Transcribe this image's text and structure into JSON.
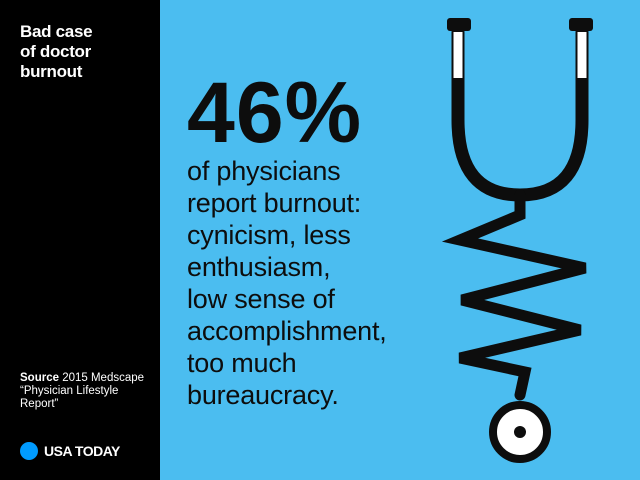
{
  "sidebar": {
    "title_lines": [
      "Bad case",
      "of doctor",
      "burnout"
    ],
    "source_label": "Source",
    "source_lines": [
      " 2015 Medscape",
      "“Physician Lifestyle",
      "Report”"
    ],
    "brand": "USA TODAY"
  },
  "main": {
    "stat": "46%",
    "description_lines": [
      "of physicians",
      "report burnout:",
      "cynicism, less",
      "enthusiasm,",
      "low sense of",
      "accomplishment,",
      "too much",
      "bureaucracy."
    ]
  },
  "colors": {
    "background": "#4bbdf0",
    "sidebar": "#000000",
    "brand_dot": "#009bff",
    "text": "#0d0d0d"
  },
  "icons": {
    "illustration": "stethoscope-icon",
    "brand_logo": "usa-today-dot-icon"
  }
}
